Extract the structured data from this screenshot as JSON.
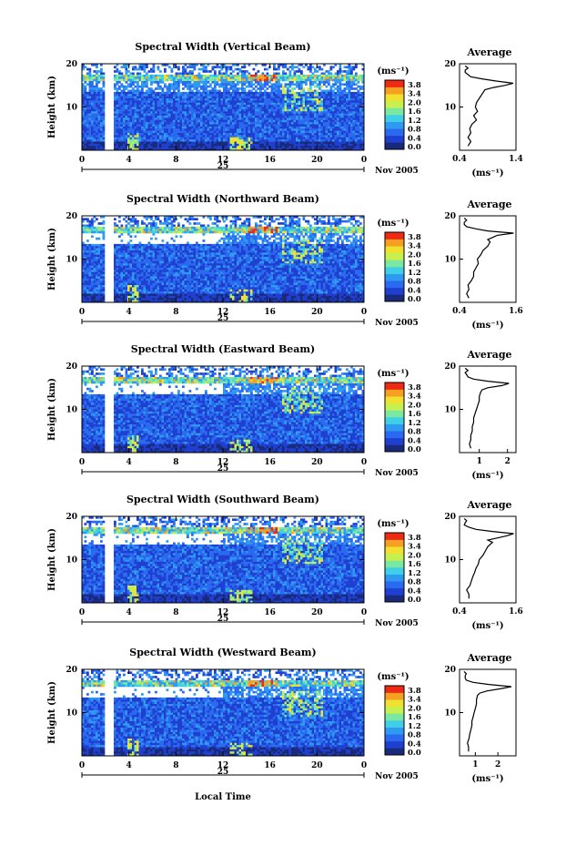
{
  "figure": {
    "date_label": "Nov 2005",
    "day_label": "25",
    "y_label": "Height (km)",
    "x_label": "Local Time",
    "unit_label": "(ms⁻¹)",
    "avg_title": "Average",
    "x_ticks": [
      "0",
      "4",
      "8",
      "12",
      "16",
      "20",
      "0"
    ]
  },
  "colors": {
    "scale": [
      "#1a2a7a",
      "#1f3fd0",
      "#2a6af0",
      "#2f9af2",
      "#3fd0e8",
      "#7ae8a0",
      "#c6f050",
      "#f0e030",
      "#f5a020",
      "#ee2a14"
    ]
  },
  "colorbar_ticks": [
    "3.8",
    "3.4",
    "2.0",
    "1.6",
    "1.2",
    "0.8",
    "0.4",
    "0.0"
  ],
  "chart_data": [
    {
      "type": "heatmap",
      "title": "Spectral Width (Vertical Beam)",
      "x_range": [
        0,
        24
      ],
      "y_range": [
        0,
        20
      ],
      "y_ticks": [
        "20",
        "10"
      ],
      "gap_hours": [
        2.0,
        2.7
      ],
      "avg_profile": {
        "x_ticks": [
          "0.4",
          "1.4"
        ],
        "xlim": [
          0.4,
          1.4
        ],
        "height": [
          1,
          2,
          3,
          4,
          5,
          6,
          7,
          8,
          9,
          10,
          11,
          12,
          13,
          14,
          14.5,
          15,
          15.5,
          16,
          16.5,
          17,
          17.5,
          18,
          18.5,
          19,
          19.5
        ],
        "value": [
          0.55,
          0.6,
          0.55,
          0.6,
          0.58,
          0.62,
          0.7,
          0.65,
          0.72,
          0.68,
          0.7,
          0.75,
          0.8,
          0.85,
          1.0,
          1.2,
          1.35,
          1.05,
          0.8,
          0.6,
          0.55,
          0.5,
          0.5,
          0.55,
          0.5
        ]
      }
    },
    {
      "type": "heatmap",
      "title": "Spectral Width (Northward Beam)",
      "x_range": [
        0,
        24
      ],
      "y_range": [
        0,
        20
      ],
      "y_ticks": [
        "20",
        "10"
      ],
      "gap_hours": [
        2.0,
        2.6
      ],
      "avg_profile": {
        "x_ticks": [
          "0.4",
          "1.6"
        ],
        "xlim": [
          0.4,
          1.6
        ],
        "height": [
          1,
          2,
          3,
          4,
          5,
          6,
          7,
          8,
          9,
          10,
          11,
          12,
          13,
          14,
          14.5,
          15,
          15.5,
          16,
          16.5,
          17,
          17.5,
          18,
          18.5,
          19,
          19.5
        ],
        "value": [
          0.6,
          0.55,
          0.6,
          0.58,
          0.65,
          0.7,
          0.7,
          0.75,
          0.8,
          0.78,
          0.85,
          0.9,
          1.0,
          1.05,
          1.0,
          1.1,
          1.2,
          1.55,
          1.0,
          0.75,
          0.55,
          0.5,
          0.5,
          0.55,
          0.5
        ]
      }
    },
    {
      "type": "heatmap",
      "title": "Spectral Width (Eastward Beam)",
      "x_range": [
        0,
        24
      ],
      "y_range": [
        0,
        20
      ],
      "y_ticks": [
        "20",
        "10"
      ],
      "gap_hours": [
        2.0,
        2.6
      ],
      "avg_profile": {
        "x_ticks": [
          "1",
          "2"
        ],
        "xlim": [
          0.3,
          2.3
        ],
        "height": [
          1,
          2,
          3,
          4,
          5,
          6,
          7,
          8,
          9,
          10,
          11,
          12,
          13,
          14,
          14.5,
          15,
          15.5,
          16,
          16.5,
          17,
          17.5,
          18,
          18.5,
          19,
          19.5
        ],
        "value": [
          0.7,
          0.65,
          0.7,
          0.7,
          0.75,
          0.75,
          0.8,
          0.8,
          0.85,
          0.9,
          0.95,
          1.0,
          1.0,
          1.05,
          1.1,
          1.3,
          1.8,
          2.05,
          1.3,
          0.8,
          0.6,
          0.55,
          0.5,
          0.6,
          0.5
        ]
      }
    },
    {
      "type": "heatmap",
      "title": "Spectral Width (Southward Beam)",
      "x_range": [
        0,
        24
      ],
      "y_range": [
        0,
        20
      ],
      "y_ticks": [
        "20",
        "10"
      ],
      "gap_hours": [
        2.0,
        2.6
      ],
      "avg_profile": {
        "x_ticks": [
          "0.4",
          "1.6"
        ],
        "xlim": [
          0.4,
          1.6
        ],
        "height": [
          1,
          2,
          3,
          4,
          5,
          6,
          7,
          8,
          9,
          10,
          11,
          12,
          13,
          14,
          14.5,
          15,
          15.5,
          16,
          16.5,
          17,
          17.5,
          18,
          18.5,
          19,
          19.5
        ],
        "value": [
          0.6,
          0.6,
          0.55,
          0.62,
          0.65,
          0.68,
          0.72,
          0.75,
          0.8,
          0.82,
          0.9,
          0.95,
          1.0,
          1.1,
          1.0,
          1.2,
          1.4,
          1.55,
          1.1,
          0.75,
          0.6,
          0.5,
          0.52,
          0.55,
          0.5
        ]
      }
    },
    {
      "type": "heatmap",
      "title": "Spectral Width (Westward Beam)",
      "x_range": [
        0,
        24
      ],
      "y_range": [
        0,
        20
      ],
      "y_ticks": [
        "20",
        "10"
      ],
      "gap_hours": [
        2.0,
        2.6
      ],
      "avg_profile": {
        "x_ticks": [
          "1",
          "2"
        ],
        "xlim": [
          0.3,
          2.8
        ],
        "height": [
          1,
          2,
          3,
          4,
          5,
          6,
          7,
          8,
          9,
          10,
          11,
          12,
          13,
          14,
          14.5,
          15,
          15.5,
          16,
          16.5,
          17,
          17.5,
          18,
          18.5,
          19,
          19.5
        ],
        "value": [
          0.7,
          0.7,
          0.65,
          0.72,
          0.75,
          0.8,
          0.85,
          0.85,
          0.9,
          0.95,
          1.0,
          1.05,
          1.05,
          1.1,
          1.2,
          1.5,
          2.1,
          2.6,
          1.6,
          0.9,
          0.6,
          0.55,
          0.55,
          0.6,
          0.5
        ]
      }
    }
  ]
}
